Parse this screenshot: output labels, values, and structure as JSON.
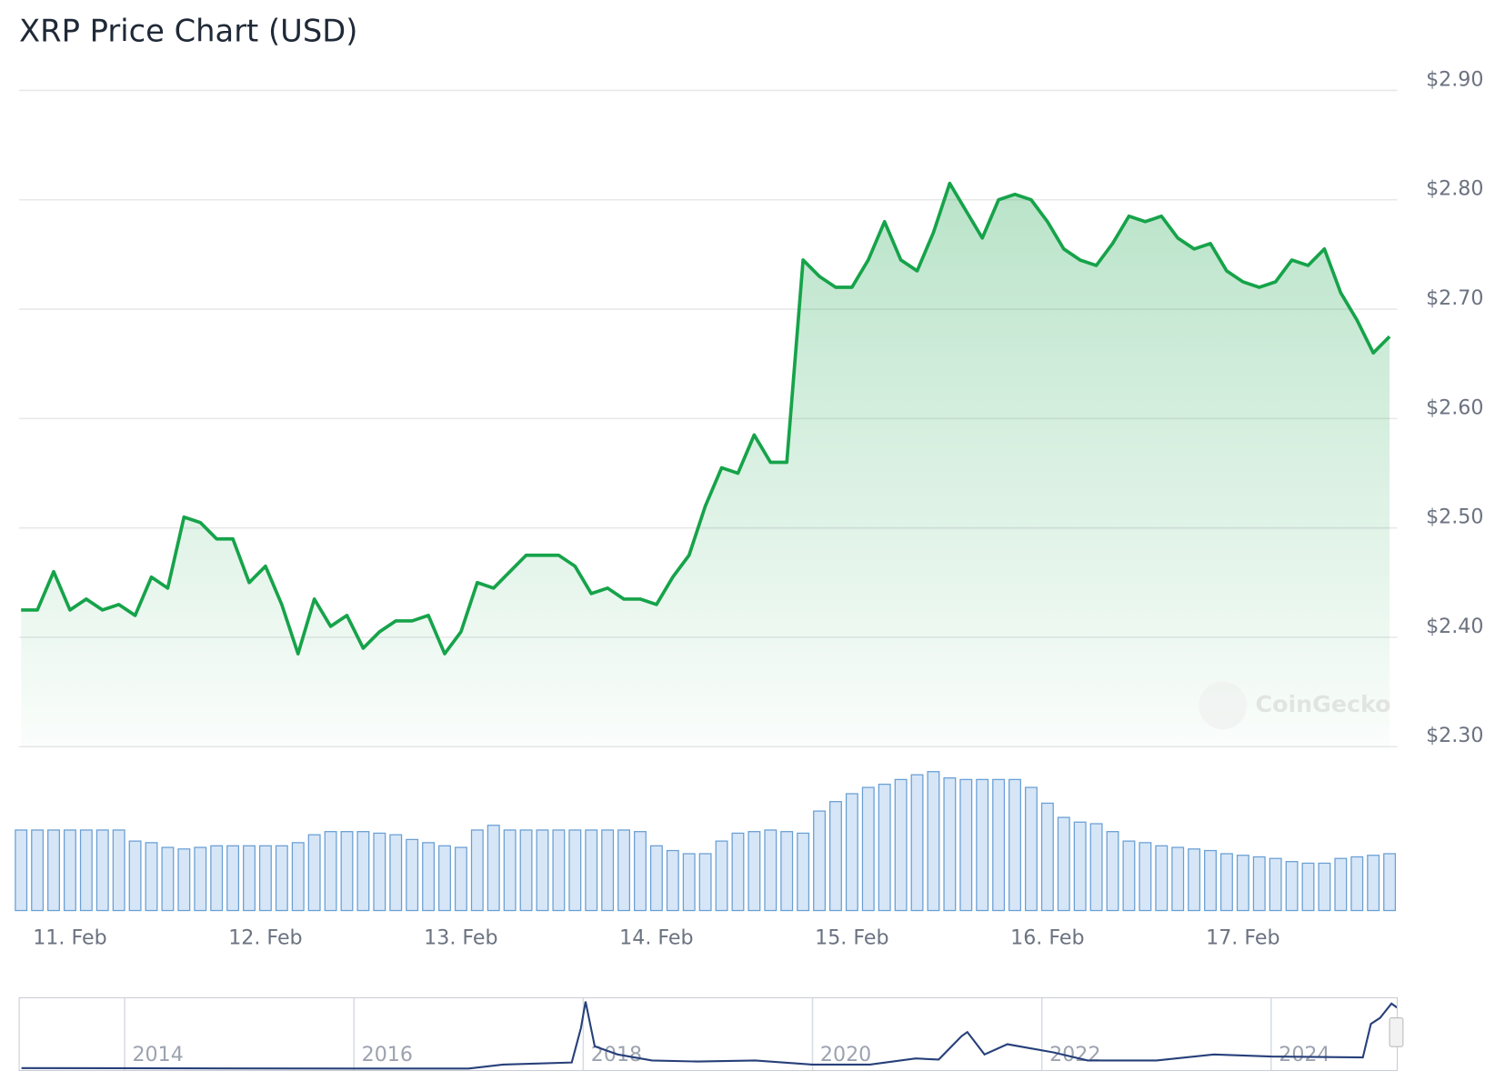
{
  "chart_data": [
    {
      "type": "area",
      "title": "XRP Price Chart (USD)",
      "watermark": "CoinGecko",
      "categories": [
        null,
        null,
        null,
        "11. Feb",
        null,
        null,
        null,
        null,
        null,
        null,
        null,
        null,
        null,
        null,
        null,
        "12. Feb",
        null,
        null,
        null,
        null,
        null,
        null,
        null,
        null,
        null,
        null,
        null,
        "13. Feb",
        null,
        null,
        null,
        null,
        null,
        null,
        null,
        null,
        null,
        null,
        null,
        "14. Feb",
        null,
        null,
        null,
        null,
        null,
        null,
        null,
        null,
        null,
        null,
        null,
        "15. Feb",
        null,
        null,
        null,
        null,
        null,
        null,
        null,
        null,
        null,
        null,
        null,
        "16. Feb",
        null,
        null,
        null,
        null,
        null,
        null,
        null,
        null,
        null,
        null,
        null,
        "17. Feb",
        null,
        null,
        null,
        null,
        null,
        null,
        null,
        null,
        null
      ],
      "values": [
        2.425,
        2.425,
        2.46,
        2.425,
        2.435,
        2.425,
        2.43,
        2.42,
        2.455,
        2.445,
        2.51,
        2.505,
        2.49,
        2.49,
        2.45,
        2.465,
        2.43,
        2.385,
        2.435,
        2.41,
        2.42,
        2.39,
        2.405,
        2.415,
        2.415,
        2.42,
        2.385,
        2.405,
        2.45,
        2.445,
        2.46,
        2.475,
        2.475,
        2.475,
        2.465,
        2.44,
        2.445,
        2.435,
        2.435,
        2.43,
        2.455,
        2.475,
        2.52,
        2.555,
        2.55,
        2.585,
        2.56,
        2.56,
        2.745,
        2.73,
        2.72,
        2.72,
        2.745,
        2.78,
        2.745,
        2.735,
        2.77,
        2.815,
        2.79,
        2.765,
        2.8,
        2.805,
        2.8,
        2.78,
        2.755,
        2.745,
        2.74,
        2.76,
        2.785,
        2.78,
        2.785,
        2.765,
        2.755,
        2.76,
        2.735,
        2.725,
        2.72,
        2.725,
        2.745,
        2.74,
        2.755,
        2.715,
        2.69,
        2.66,
        2.675
      ],
      "color": "#16a34a",
      "volume": {
        "color": "#6a9fd4",
        "values": [
          5.1,
          5.1,
          5.1,
          5.1,
          5.1,
          5.1,
          5.1,
          4.4,
          4.3,
          4.0,
          3.9,
          4.0,
          4.1,
          4.1,
          4.1,
          4.1,
          4.1,
          4.3,
          4.8,
          5.0,
          5.0,
          5.0,
          4.9,
          4.8,
          4.5,
          4.3,
          4.1,
          4.0,
          5.1,
          5.4,
          5.1,
          5.1,
          5.1,
          5.1,
          5.1,
          5.1,
          5.1,
          5.1,
          5.0,
          4.1,
          3.8,
          3.6,
          3.6,
          4.4,
          4.9,
          5.0,
          5.1,
          5.0,
          4.9,
          6.3,
          6.9,
          7.4,
          7.8,
          8.0,
          8.3,
          8.6,
          8.8,
          8.4,
          8.3,
          8.3,
          8.3,
          8.3,
          7.8,
          6.8,
          5.9,
          5.6,
          5.5,
          5.0,
          4.4,
          4.3,
          4.1,
          4.0,
          3.9,
          3.8,
          3.6,
          3.5,
          3.4,
          3.3,
          3.1,
          3.0,
          3.0,
          3.3,
          3.4,
          3.5,
          3.6
        ]
      },
      "ylim": [
        2.3,
        2.9
      ],
      "yticks": [
        {
          "value": 2.3,
          "label": "$2.30"
        },
        {
          "value": 2.4,
          "label": "$2.40"
        },
        {
          "value": 2.5,
          "label": "$2.50"
        },
        {
          "value": 2.6,
          "label": "$2.60"
        },
        {
          "value": 2.7,
          "label": "$2.70"
        },
        {
          "value": 2.8,
          "label": "$2.80"
        },
        {
          "value": 2.9,
          "label": "$2.90"
        }
      ],
      "grid": true
    },
    {
      "type": "line",
      "color": "#27407a",
      "x": [
        2013.1,
        2014,
        2015,
        2016,
        2017,
        2017.3,
        2017.9,
        2017.98,
        2018.02,
        2018.1,
        2018.3,
        2018.6,
        2019,
        2019.5,
        2020,
        2020.5,
        2020.9,
        2021.1,
        2021.3,
        2021.35,
        2021.5,
        2021.7,
        2021.9,
        2022.1,
        2022.4,
        2023,
        2023.5,
        2024,
        2024.8,
        2024.87,
        2024.95,
        2025.05,
        2025.1
      ],
      "values": [
        0.03,
        0.02,
        0.01,
        0.006,
        0.006,
        0.2,
        0.3,
        2.0,
        3.3,
        1.1,
        0.7,
        0.4,
        0.35,
        0.4,
        0.2,
        0.2,
        0.5,
        0.45,
        1.6,
        1.8,
        0.7,
        1.2,
        1.0,
        0.8,
        0.4,
        0.4,
        0.7,
        0.6,
        0.55,
        2.2,
        2.5,
        3.2,
        3.0
      ],
      "xlim": [
        2013.08,
        2025.1
      ],
      "xticks": [
        2014,
        2016,
        2018,
        2020,
        2022,
        2024
      ]
    }
  ]
}
